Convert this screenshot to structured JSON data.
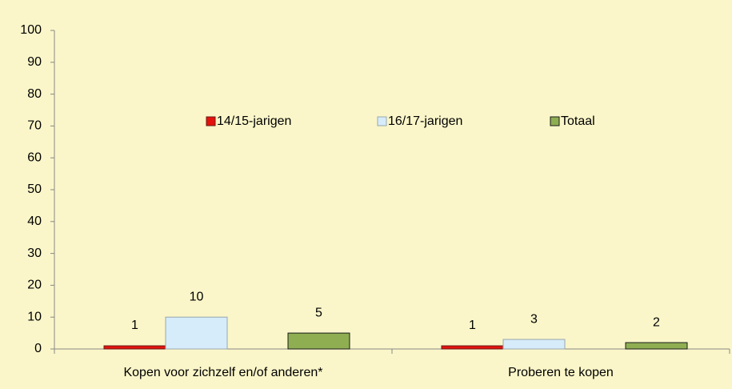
{
  "chart_data": {
    "type": "bar",
    "categories": [
      "Kopen voor zichzelf en/of anderen*",
      "Proberen te kopen"
    ],
    "series": [
      {
        "name": "14/15-jarigen",
        "color": "#e3120b",
        "edgecolor": "#6b1a1a",
        "values": [
          1,
          1
        ]
      },
      {
        "name": "16/17-jarigen",
        "color": "#d6ecfa",
        "edgecolor": "#9aa6ad",
        "values": [
          10,
          3
        ]
      },
      {
        "name": "Totaal",
        "color": "#8fae52",
        "edgecolor": "#1a1a1a",
        "values": [
          5,
          2
        ]
      }
    ],
    "ylim": [
      0,
      100
    ],
    "yticks": [
      0,
      10,
      20,
      30,
      40,
      50,
      60,
      70,
      80,
      90,
      100
    ],
    "background": "#faf6c9"
  }
}
